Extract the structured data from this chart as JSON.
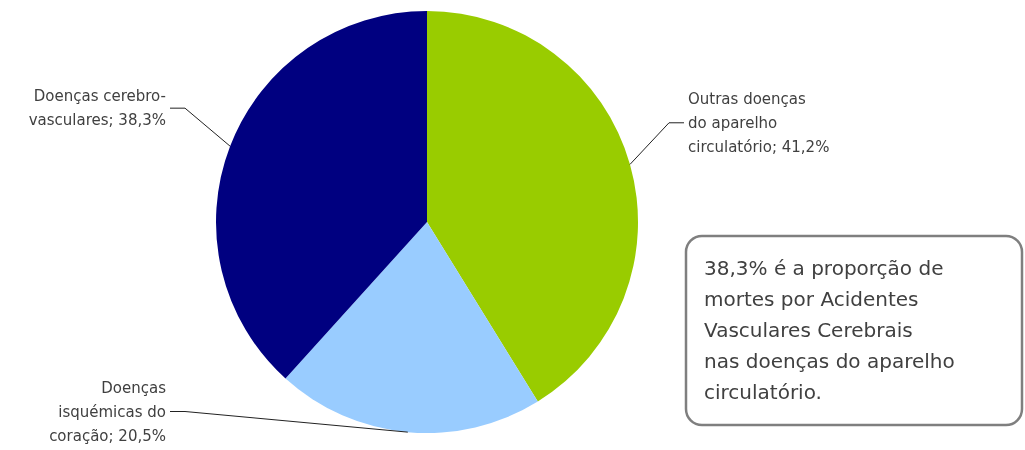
{
  "chart_data": {
    "type": "pie",
    "categories": [
      "Outras doenças do aparelho circulatório",
      "Doenças isquémicas do coração",
      "Doenças cerebro-vasculares"
    ],
    "values": [
      41.2,
      20.5,
      38.3
    ],
    "colors": [
      "#99cc00",
      "#99ccff",
      "#000080"
    ],
    "value_labels": [
      "41,2%",
      "20,5%",
      "38,3%"
    ],
    "annotations": [
      "38,3% é a proporção de mortes por Acidentes Vasculares Cerebrais nas doenças do aparelho circulatório."
    ]
  }
}
